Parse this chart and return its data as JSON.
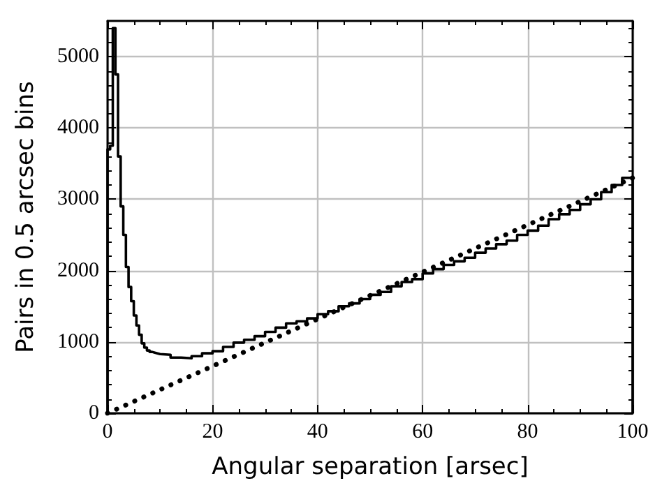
{
  "chart_data": {
    "type": "histogram",
    "xlabel": "Angular separation [arsec]",
    "ylabel": "Pairs in 0.5 arcsec bins",
    "xlim": [
      0,
      100
    ],
    "xticks": [
      0,
      20,
      40,
      60,
      80,
      100
    ],
    "ylim": [
      0,
      5500
    ],
    "yticks": [
      0,
      1000,
      2000,
      3000,
      4000,
      5000
    ],
    "grid": true,
    "series": [
      {
        "color": "#000000",
        "bins": [
          0,
          0.5,
          1,
          1.5,
          2,
          2.5,
          3,
          3.5,
          4,
          4.5,
          5,
          5.5,
          6,
          6.5,
          7,
          7.5,
          8,
          8.5,
          9,
          9.5,
          10,
          12,
          14,
          16,
          18,
          20,
          22,
          24,
          26,
          28,
          30,
          32,
          34,
          36,
          38,
          40,
          42,
          44,
          46,
          48,
          50,
          52,
          54,
          56,
          58,
          60,
          62,
          64,
          66,
          68,
          70,
          72,
          74,
          76,
          78,
          80,
          82,
          84,
          86,
          88,
          90,
          92,
          94,
          96,
          98,
          100
        ],
        "values": [
          3700,
          3750,
          5400,
          4750,
          3600,
          2900,
          2500,
          2050,
          1770,
          1570,
          1370,
          1230,
          1100,
          980,
          920,
          880,
          860,
          850,
          840,
          830,
          820,
          780,
          770,
          800,
          840,
          870,
          930,
          990,
          1030,
          1080,
          1140,
          1200,
          1260,
          1290,
          1330,
          1390,
          1430,
          1500,
          1540,
          1600,
          1660,
          1700,
          1780,
          1840,
          1880,
          1960,
          2020,
          2080,
          2130,
          2180,
          2250,
          2310,
          2370,
          2420,
          2500,
          2560,
          2630,
          2720,
          2790,
          2850,
          2930,
          3000,
          3100,
          3200,
          3300
        ]
      },
      {
        "type": "line",
        "color": "#000000",
        "line_style": "dotted",
        "marker": "none",
        "x": [
          0,
          100
        ],
        "values": [
          0,
          3300
        ]
      }
    ]
  }
}
